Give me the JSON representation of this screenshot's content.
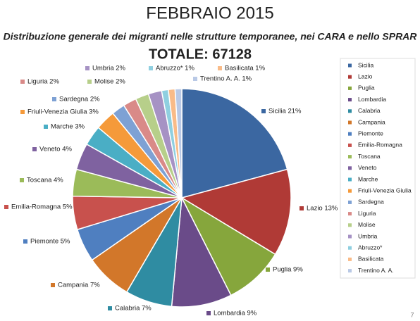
{
  "chart_data": {
    "type": "pie",
    "title": "FEBBRAIO 2015",
    "subtitle": "Distribuzione generale dei migranti nelle strutture temporanee, nei CARA e nello SPRAR",
    "total": "TOTALE: 67128",
    "page_number": "7",
    "categories": [
      "Sicilia",
      "Lazio",
      "Puglia",
      "Lombardia",
      "Calabria",
      "Campania",
      "Piemonte",
      "Emilia-Romagna",
      "Toscana",
      "Veneto",
      "Marche",
      "Friuli-Venezia Giulia",
      "Sardegna",
      "Liguria",
      "Molise",
      "Umbria",
      "Abruzzo*",
      "Basilicata",
      "Trentino A. A."
    ],
    "values": [
      21,
      13,
      9,
      9,
      7,
      7,
      5,
      5,
      4,
      4,
      3,
      3,
      2,
      2,
      2,
      2,
      1,
      1,
      1
    ],
    "value_labels": [
      "Sicilia 21%",
      "Lazio 13%",
      "Puglia 9%",
      "Lombardia 9%",
      "Calabria 7%",
      "Campania 7%",
      "Piemonte 5%",
      "Emilia-Romagna 5%",
      "Toscana 4%",
      "Veneto 4%",
      "Marche 3%",
      "Friuli-Venezia Giulia 3%",
      "Sardegna 2%",
      "Liguria 2%",
      "Molise 2%",
      "Umbria 2%",
      "Abruzzo* 1%",
      "Basilicata 1%",
      "Trentino A. A. 1%"
    ],
    "colors": [
      "#3b67a1",
      "#b03a36",
      "#86a63c",
      "#6a4b89",
      "#2f8ca2",
      "#d2772a",
      "#4f7fc0",
      "#c8514d",
      "#9bbb59",
      "#7f62a0",
      "#4aaec5",
      "#f59a3a",
      "#7ea1d4",
      "#d98a88",
      "#b7cf8a",
      "#a692c4",
      "#8fcfe0",
      "#f9bb88",
      "#b9c9e6"
    ],
    "legend": "right"
  }
}
